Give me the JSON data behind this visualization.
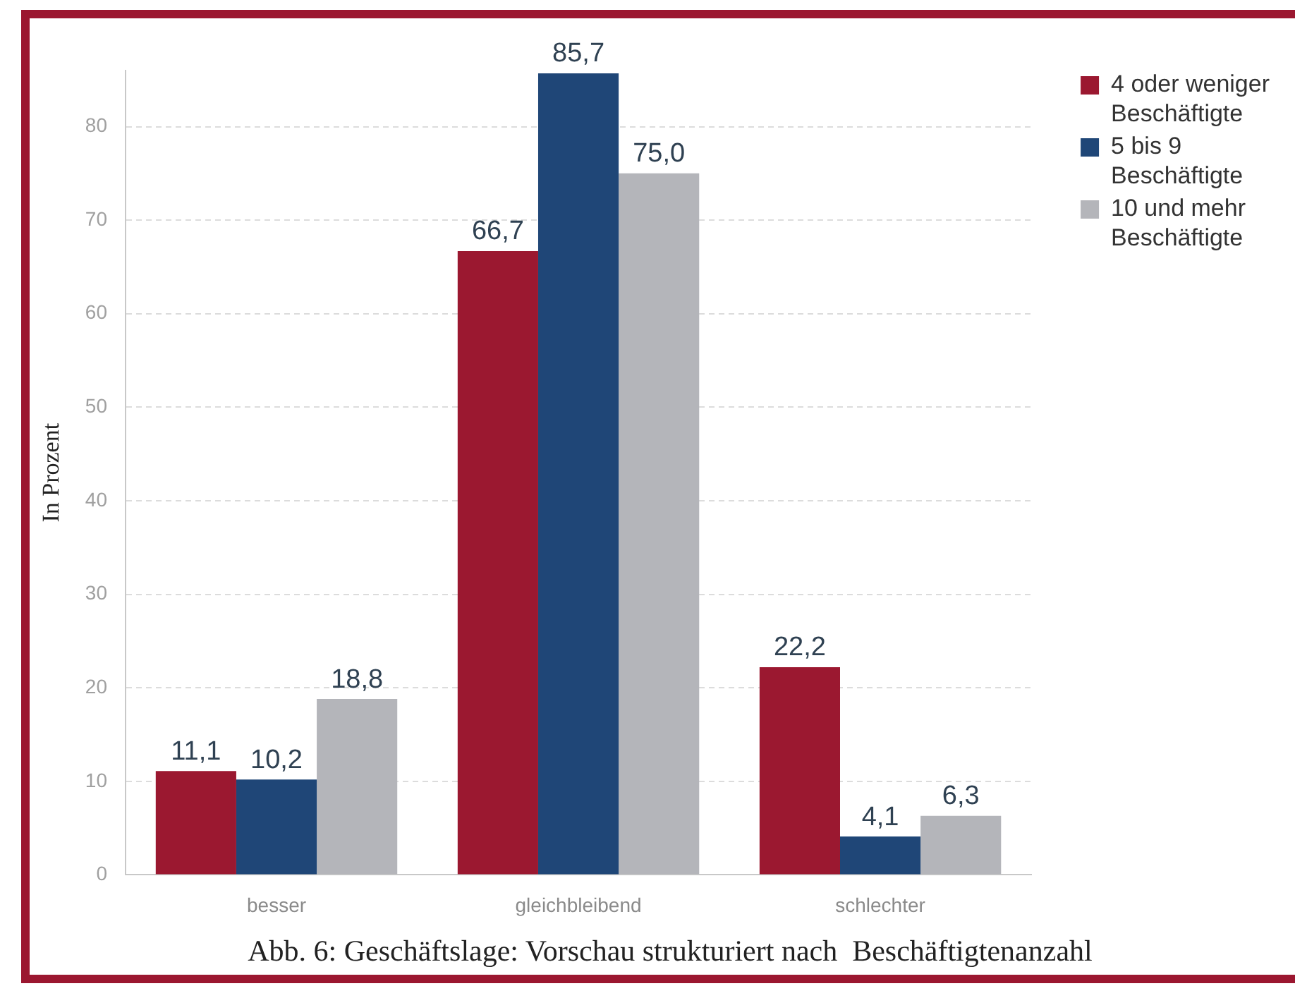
{
  "chart_data": {
    "type": "bar",
    "categories": [
      "besser",
      "gleichbleibend",
      "schlechter"
    ],
    "series": [
      {
        "name": "4 oder weniger Beschäftigte",
        "color": "#9b1830",
        "values": [
          11.1,
          66.7,
          22.2
        ],
        "value_labels": [
          "11,1",
          "66,7",
          "22,2"
        ]
      },
      {
        "name": "5 bis 9 Beschäftigte",
        "color": "#1f4677",
        "values": [
          10.2,
          85.7,
          4.1
        ],
        "value_labels": [
          "10,2",
          "85,7",
          "4,1"
        ]
      },
      {
        "name": "10 und mehr Beschäftigte",
        "color": "#b4b5ba",
        "values": [
          18.8,
          75.0,
          6.3
        ],
        "value_labels": [
          "18,8",
          "75,0",
          "6,3"
        ]
      }
    ],
    "ylabel": "In Prozent",
    "ylim": [
      0,
      86
    ],
    "yticks": [
      0,
      10,
      20,
      30,
      40,
      50,
      60,
      70,
      80
    ],
    "grid": "y",
    "legend": "top right",
    "annotations": [
      "Abb. 6: Geschäftslage: Vorschau strukturiert nach  Beschäftigtenanzahl"
    ]
  }
}
